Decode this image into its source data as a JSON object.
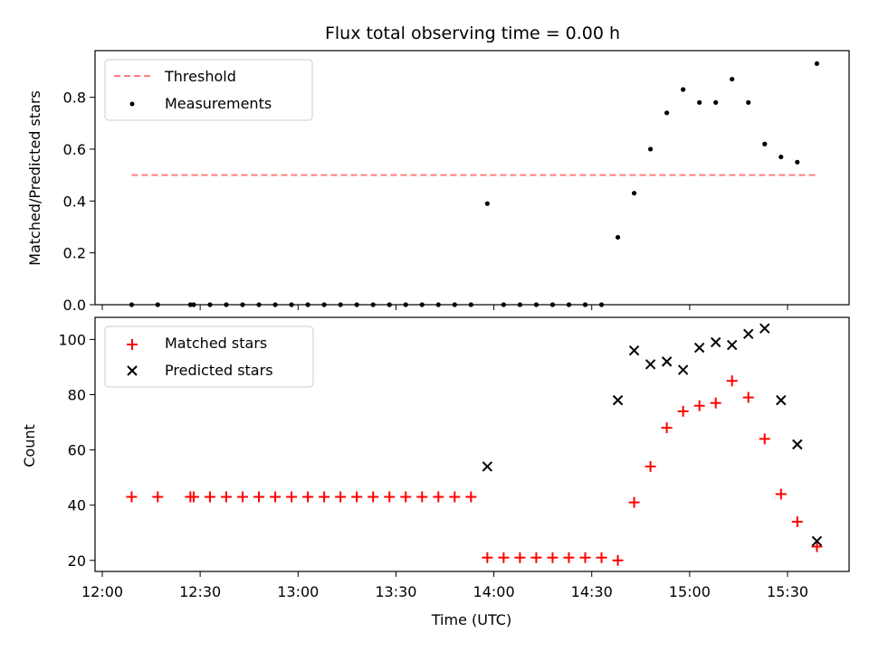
{
  "title": "Flux total observing time = 0.00 h",
  "colors": {
    "threshold": "#ff7f7f",
    "measurement": "#000000",
    "matched": "#ff0000",
    "predicted": "#000000"
  },
  "chart_data": [
    {
      "type": "scatter",
      "title": "Flux total observing time = 0.00 h",
      "xlabel": "",
      "ylabel": "Matched/Predicted stars",
      "xlim": [
        "12:00",
        "15:48"
      ],
      "ylim": [
        0,
        0.98
      ],
      "yticks": [
        0.0,
        0.2,
        0.4,
        0.6,
        0.8
      ],
      "yticklabels": [
        "0.0",
        "0.2",
        "0.4",
        "0.6",
        "0.8"
      ],
      "grid": false,
      "legend": "top-left",
      "series": [
        {
          "name": "Threshold",
          "kind": "dashed-line",
          "x": [
            "12:09",
            "15:39"
          ],
          "y": [
            0.5,
            0.5
          ]
        },
        {
          "name": "Measurements",
          "kind": "points",
          "x": [
            "12:09",
            "12:17",
            "12:27",
            "12:28",
            "12:33",
            "12:38",
            "12:43",
            "12:48",
            "12:53",
            "12:58",
            "13:03",
            "13:08",
            "13:13",
            "13:18",
            "13:23",
            "13:28",
            "13:33",
            "13:38",
            "13:43",
            "13:48",
            "13:53",
            "13:58",
            "14:03",
            "14:08",
            "14:13",
            "14:18",
            "14:23",
            "14:28",
            "14:33",
            "14:38",
            "14:43",
            "14:48",
            "14:53",
            "14:58",
            "15:03",
            "15:08",
            "15:13",
            "15:18",
            "15:23",
            "15:28",
            "15:33",
            "15:39"
          ],
          "y": [
            0.0,
            0.0,
            0.0,
            0.0,
            0.0,
            0.0,
            0.0,
            0.0,
            0.0,
            0.0,
            0.0,
            0.0,
            0.0,
            0.0,
            0.0,
            0.0,
            0.0,
            0.0,
            0.0,
            0.0,
            0.0,
            0.39,
            0.0,
            0.0,
            0.0,
            0.0,
            0.0,
            0.0,
            0.0,
            0.26,
            0.43,
            0.6,
            0.74,
            0.83,
            0.78,
            0.78,
            0.87,
            0.78,
            0.62,
            0.57,
            0.55,
            0.93
          ]
        }
      ]
    },
    {
      "type": "scatter",
      "xlabel": "Time (UTC)",
      "ylabel": "Count",
      "xlim": [
        "12:00",
        "15:48"
      ],
      "ylim": [
        16,
        108
      ],
      "xticks": [
        "12:00",
        "12:30",
        "13:00",
        "13:30",
        "14:00",
        "14:30",
        "15:00",
        "15:30"
      ],
      "yticks": [
        20,
        40,
        60,
        80,
        100
      ],
      "grid": false,
      "legend": "top-left",
      "series": [
        {
          "name": "Matched stars",
          "marker": "plus",
          "x": [
            "12:09",
            "12:17",
            "12:27",
            "12:28",
            "12:33",
            "12:38",
            "12:43",
            "12:48",
            "12:53",
            "12:58",
            "13:03",
            "13:08",
            "13:13",
            "13:18",
            "13:23",
            "13:28",
            "13:33",
            "13:38",
            "13:43",
            "13:48",
            "13:53",
            "13:58",
            "14:03",
            "14:08",
            "14:13",
            "14:18",
            "14:23",
            "14:28",
            "14:33",
            "14:38",
            "14:43",
            "14:48",
            "14:53",
            "14:58",
            "15:03",
            "15:08",
            "15:13",
            "15:18",
            "15:23",
            "15:28",
            "15:33",
            "15:39"
          ],
          "y": [
            43,
            43,
            43,
            43,
            43,
            43,
            43,
            43,
            43,
            43,
            43,
            43,
            43,
            43,
            43,
            43,
            43,
            43,
            43,
            43,
            43,
            21,
            21,
            21,
            21,
            21,
            21,
            21,
            21,
            20,
            41,
            54,
            68,
            74,
            76,
            77,
            85,
            79,
            64,
            44,
            34,
            25
          ]
        },
        {
          "name": "Predicted stars",
          "marker": "x",
          "x": [
            "13:58",
            "14:38",
            "14:43",
            "14:48",
            "14:53",
            "14:58",
            "15:03",
            "15:08",
            "15:13",
            "15:18",
            "15:23",
            "15:28",
            "15:33",
            "15:39"
          ],
          "y": [
            54,
            78,
            96,
            91,
            92,
            89,
            97,
            99,
            98,
            102,
            104,
            78,
            62,
            27
          ]
        }
      ]
    }
  ]
}
